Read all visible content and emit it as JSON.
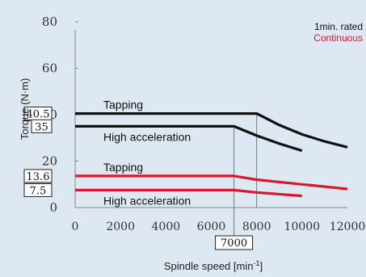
{
  "chart_data": {
    "type": "line",
    "xlabel": "Spindle speed [min",
    "xlabel_sup": "-1",
    "xlabel_end": "]",
    "ylabel": "Torque (N·m)",
    "xlim": [
      0,
      12000
    ],
    "ylim": [
      0,
      80
    ],
    "xticks": [
      0,
      2000,
      4000,
      6000,
      8000,
      10000,
      12000
    ],
    "yticks": [
      0,
      20,
      40,
      60,
      80
    ],
    "legend": [
      {
        "label": "1min. rated",
        "color": "#111111"
      },
      {
        "label": "Continuous",
        "color": "#d9182d"
      }
    ],
    "series": [
      {
        "name": "Tapping",
        "group": "1min. rated",
        "color": "#111111",
        "x": [
          0,
          8000,
          9000,
          10000,
          11000,
          12000
        ],
        "y": [
          40.5,
          40.5,
          35.5,
          31.5,
          28.5,
          26
        ]
      },
      {
        "name": "High acceleration",
        "group": "1min. rated",
        "color": "#111111",
        "x": [
          0,
          7000,
          8000,
          9000,
          10000
        ],
        "y": [
          35,
          35,
          31,
          27.5,
          24.5
        ]
      },
      {
        "name": "Tapping",
        "group": "Continuous",
        "color": "#d9182d",
        "x": [
          0,
          7000,
          8000,
          10000,
          12000
        ],
        "y": [
          13.6,
          13.6,
          12,
          10,
          8
        ]
      },
      {
        "name": "High acceleration",
        "group": "Continuous",
        "color": "#d9182d",
        "x": [
          0,
          7000,
          8000,
          10000
        ],
        "y": [
          7.5,
          7.5,
          6.5,
          5
        ]
      }
    ],
    "reference_lines": {
      "x": [
        7000,
        8000
      ]
    },
    "annotations": {
      "y_boxes": [
        "40.5",
        "35",
        "13.6",
        "7.5"
      ],
      "y_box_values": [
        40.5,
        35,
        13.6,
        7.5
      ],
      "x_box": "7000",
      "x_box_value": 7000
    }
  }
}
